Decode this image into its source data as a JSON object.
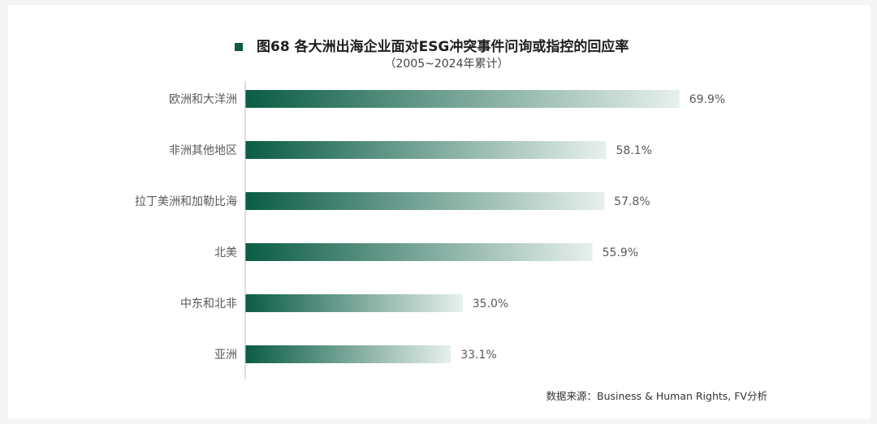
{
  "chart_data": {
    "type": "bar",
    "orientation": "horizontal",
    "title": "图68  各大洲出海企业面对ESG冲突事件问询或指控的回应率",
    "subtitle": "（2005~2024年累计）",
    "categories": [
      "欧洲和大洋洲",
      "非洲其他地区",
      "拉丁美洲和加勒比海",
      "北美",
      "中东和北非",
      "亚洲"
    ],
    "values": [
      69.9,
      58.1,
      57.8,
      55.9,
      35.0,
      33.1
    ],
    "value_labels": [
      "69.9%",
      "58.1%",
      "57.8%",
      "55.9%",
      "35.0%",
      "33.1%"
    ],
    "unit": "%",
    "xlim": [
      0,
      100
    ],
    "grid": false,
    "legend": "none",
    "source": "数据来源：Business & Human Rights, FV分析",
    "colors": {
      "bar_start": "#0a5c45",
      "bar_end": "#e7f0ec",
      "title_marker": "#0f5a46",
      "axis": "#bfbfbf",
      "background": "#ffffff"
    }
  }
}
